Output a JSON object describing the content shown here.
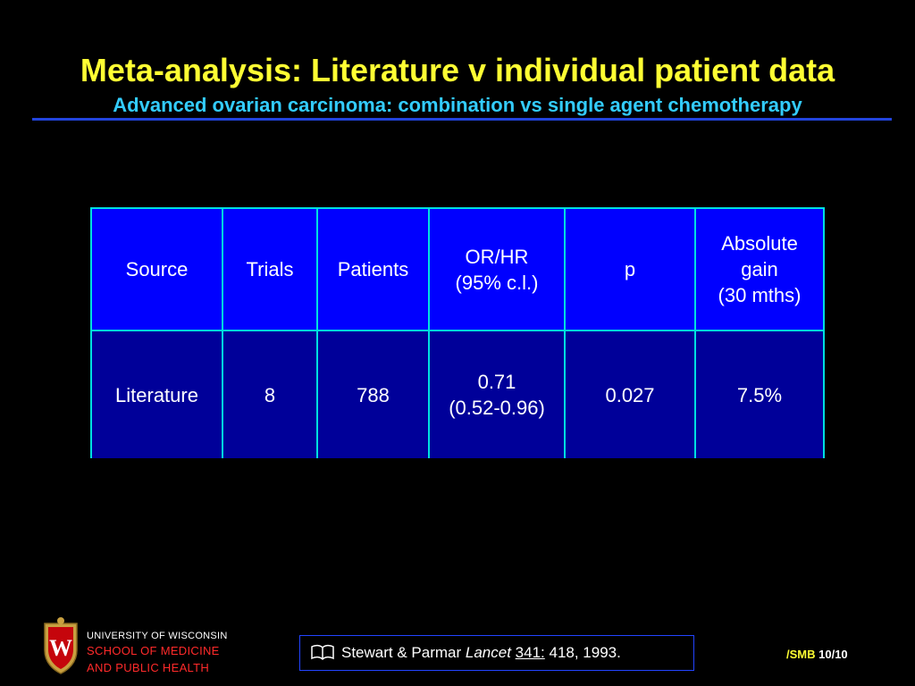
{
  "slide": {
    "title": "Meta-analysis: Literature v individual patient data",
    "subtitle": "Advanced ovarian carcinoma: combination vs single agent chemotherapy"
  },
  "table": {
    "headers": [
      "Source",
      "Trials",
      "Patients",
      "OR/HR\n(95% c.l.)",
      "p",
      "Absolute\ngain\n(30 mths)"
    ],
    "rows": [
      [
        "Literature",
        "8",
        "788",
        "0.71\n(0.52-0.96)",
        "0.027",
        "7.5%"
      ]
    ]
  },
  "footer": {
    "institution_line1": "UNIVERSITY OF WISCONSIN",
    "institution_line2": "SCHOOL OF MEDICINE",
    "institution_line3": "AND PUBLIC HEALTH",
    "citation": {
      "icon": "book-icon",
      "authors": "Stewart & Parmar",
      "journal": "Lancet",
      "volume": "341:",
      "pages": "418, 1993."
    },
    "slide_prefix": "/SMB",
    "slide_number": "10/10"
  },
  "colors": {
    "background": "#000000",
    "title": "#ffff33",
    "subtitle": "#33ccff",
    "table_header": "#0000ff",
    "table_body": "#000099",
    "table_border": "#00e0e0",
    "institution_red": "#ff2a2a"
  }
}
